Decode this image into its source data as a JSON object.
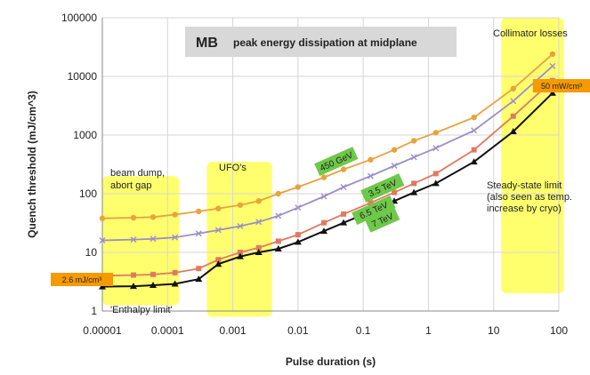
{
  "chart_data": {
    "type": "line",
    "title": "MB",
    "subtitle": "peak energy dissipation at midplane",
    "xlabel": "Pulse duration (s)",
    "ylabel": "Quench threshold (mJ/cm^3)",
    "x_scale": "log",
    "y_scale": "log",
    "xlim": [
      1e-05,
      100
    ],
    "ylim": [
      1,
      100000
    ],
    "x_ticks": [
      "0.00001",
      "0.0001",
      "0.001",
      "0.01",
      "0.1",
      "1",
      "10",
      "100"
    ],
    "y_ticks": [
      "1",
      "10",
      "100",
      "1000",
      "10000",
      "100000"
    ],
    "grid": true,
    "highlight_regions": [
      {
        "label": "beam dump,\nabort gap",
        "x_range": [
          1e-05,
          0.00015
        ],
        "y_range": [
          1.25,
          200
        ]
      },
      {
        "label": "UFO's",
        "x_range": [
          0.0004,
          0.004
        ],
        "y_range": [
          0.8,
          350
        ]
      },
      {
        "label": "Collimator losses",
        "x_range": [
          13,
          120
        ],
        "y_range": [
          2,
          100000
        ]
      }
    ],
    "annotations": [
      {
        "text": "'Enthalpy limit'"
      },
      {
        "text": "Steady-state limit\n(also seen as temp.\nincrease by cryo)"
      }
    ],
    "series": [
      {
        "name": "450 GeV",
        "color": "#e8a33d",
        "marker": "circle",
        "x": [
          1e-05,
          3e-05,
          6e-05,
          0.00013,
          0.0003,
          0.0006,
          0.0013,
          0.0025,
          0.005,
          0.01,
          0.025,
          0.05,
          0.13,
          0.3,
          0.6,
          1.3,
          5,
          20,
          80
        ],
        "y": [
          38,
          39,
          40,
          44,
          50,
          56,
          64,
          75,
          100,
          130,
          190,
          260,
          380,
          560,
          800,
          1100,
          2000,
          6200,
          24000
        ]
      },
      {
        "name": "3.5 TeV",
        "color": "#9c8fc6",
        "marker": "x",
        "x": [
          1e-05,
          3e-05,
          6e-05,
          0.00013,
          0.0003,
          0.0006,
          0.0013,
          0.0025,
          0.005,
          0.01,
          0.025,
          0.05,
          0.13,
          0.3,
          0.6,
          1.3,
          5,
          20,
          80
        ],
        "y": [
          16,
          16.5,
          17,
          18,
          21,
          24,
          28,
          33,
          42,
          58,
          90,
          130,
          200,
          300,
          420,
          600,
          1200,
          3800,
          15000
        ]
      },
      {
        "name": "6.5 TeV",
        "color": "#e07a5f",
        "marker": "square",
        "x": [
          1e-05,
          3e-05,
          6e-05,
          0.00013,
          0.0003,
          0.0006,
          0.0013,
          0.0025,
          0.005,
          0.01,
          0.025,
          0.05,
          0.13,
          0.3,
          0.6,
          1.3,
          5,
          20,
          80
        ],
        "y": [
          4,
          4.1,
          4.2,
          4.5,
          5.3,
          7.5,
          10,
          12,
          15.5,
          20,
          32,
          45,
          70,
          105,
          150,
          220,
          560,
          2100,
          8500
        ]
      },
      {
        "name": "7 TeV",
        "color": "#111111",
        "marker": "triangle",
        "x": [
          1e-05,
          3e-05,
          6e-05,
          0.00013,
          0.0003,
          0.0006,
          0.0013,
          0.0025,
          0.005,
          0.01,
          0.025,
          0.05,
          0.13,
          0.3,
          0.6,
          1.3,
          5,
          20,
          80
        ],
        "y": [
          2.6,
          2.65,
          2.75,
          2.9,
          3.5,
          6.3,
          8.5,
          10,
          11.5,
          15,
          23,
          32,
          50,
          75,
          105,
          150,
          350,
          1150,
          5200
        ]
      }
    ],
    "limit_labels": [
      {
        "text": "2.6 mJ/cm³",
        "x": 1e-05,
        "y": 2.6
      },
      {
        "text": "50 mW/cm³",
        "x": 80,
        "y": 5200
      }
    ]
  },
  "colors": {
    "highlight": "#ffff55",
    "label_green": "#6ec84a",
    "label_orange": "#f59a00",
    "grid": "#d6d6d6",
    "title_box": "#d8d8d8"
  }
}
